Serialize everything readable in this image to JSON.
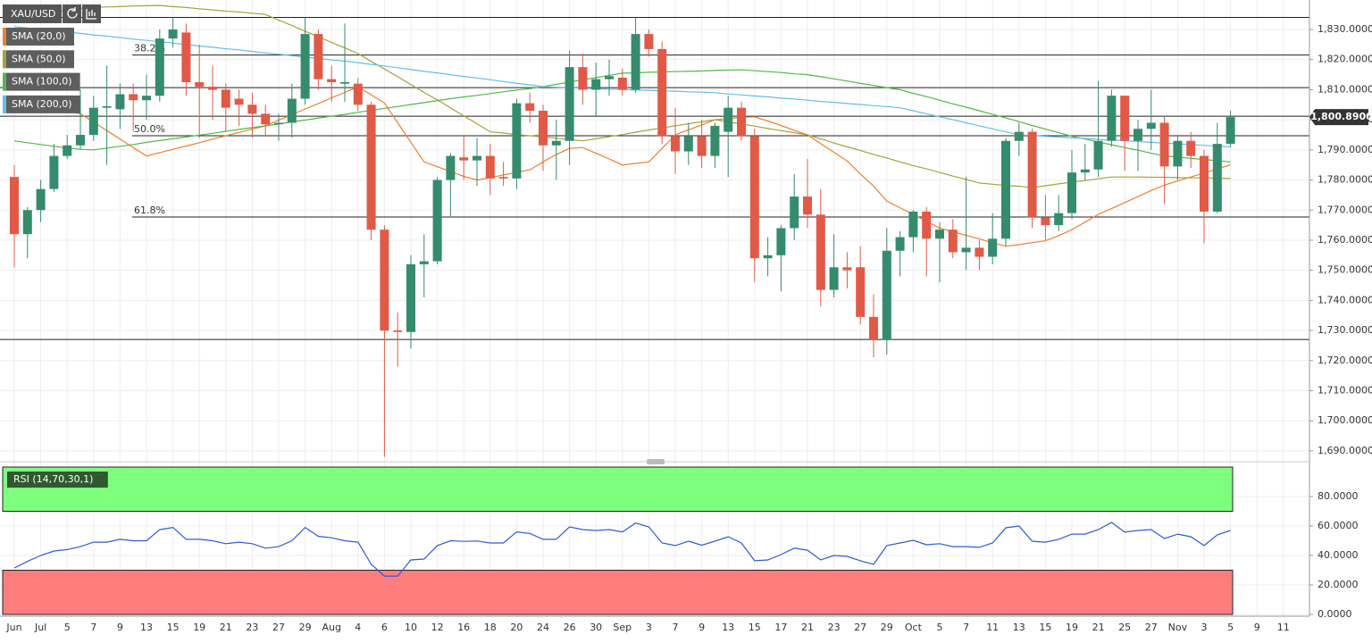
{
  "chart_data": [
    {
      "type": "candlestick",
      "symbol": "XAU/USD",
      "up_color": "#358c6c",
      "down_color": "#e05a47",
      "categories": [
        "Jun",
        null,
        "Jul",
        null,
        "5",
        null,
        "7",
        null,
        "9",
        null,
        "13",
        null,
        "15",
        null,
        "19",
        null,
        "21",
        null,
        "23",
        null,
        "27",
        null,
        "29",
        null,
        "Aug",
        null,
        "4",
        null,
        "6",
        null,
        "10",
        null,
        "12",
        null,
        "16",
        null,
        "18",
        null,
        "20",
        null,
        "24",
        null,
        "26",
        null,
        "30",
        null,
        "Sep",
        null,
        "3",
        null,
        "7",
        null,
        "9",
        null,
        "13",
        null,
        "15",
        null,
        "17",
        null,
        "21",
        null,
        "23",
        null,
        "27",
        null,
        "29",
        null,
        "Oct",
        null,
        "5",
        null,
        "7",
        null,
        "11",
        null,
        "13",
        null,
        "15",
        null,
        "19",
        null,
        "21",
        null,
        "25",
        null,
        "27",
        null,
        "Nov",
        null,
        "3",
        null,
        "5",
        null,
        "9",
        null,
        "11"
      ],
      "open": [
        1781,
        1762,
        1770,
        1777,
        1788,
        1791.5,
        1795,
        1804,
        1803.5,
        1808.5,
        1806.5,
        1808,
        1827,
        1829,
        1812.5,
        1811,
        1810,
        1807,
        1805,
        1802,
        1798.5,
        1799,
        1807,
        1828.5,
        1813.5,
        1812,
        1812,
        1805,
        1763.5,
        1730,
        1729.5,
        1752,
        1753,
        1780,
        1787.5,
        1786.5,
        1788,
        1781,
        1780.5,
        1805.5,
        1803,
        1791.5,
        1793,
        1817.5,
        1810,
        1813.5,
        1814,
        1810,
        1828.5,
        1823.5,
        1794.5,
        1789.5,
        1794.5,
        1788,
        1796,
        1804,
        1794.5,
        1754,
        1755,
        1764,
        1774.5,
        1768.5,
        1743.5,
        1751,
        1751,
        1734.5,
        1727,
        1756.5,
        1761,
        1769.5,
        1760.5,
        1763.5,
        1756,
        1757.5,
        1754.5,
        1760.5,
        1793,
        1796,
        1767.5,
        1765,
        1769,
        1782.5,
        1783.5,
        1793,
        1808,
        1793,
        1797,
        1799,
        1784.5,
        1793,
        1788,
        1769.5,
        1792,
        null,
        null,
        null,
        null
      ],
      "high": [
        1785,
        1771,
        1780,
        1792,
        1795,
        1810,
        1808,
        1818,
        1812,
        1812,
        1815,
        1830,
        1834,
        1832,
        1825,
        1818,
        1812,
        1810,
        1809,
        1805,
        1802,
        1812,
        1834,
        1830,
        1818,
        1832,
        1814,
        1806,
        1765,
        1736,
        1755,
        1762,
        1781,
        1789,
        1795,
        1794,
        1792,
        1786,
        1807,
        1809,
        1805,
        1800,
        1823,
        1822,
        1819,
        1820,
        1817,
        1834,
        1830,
        1826,
        1804,
        1799,
        1800,
        1799,
        1808,
        1806,
        1797,
        1761,
        1765,
        1782,
        1787,
        1777,
        1762,
        1756,
        1758,
        1742,
        1764,
        1763,
        1770,
        1771,
        1766,
        1767,
        1781,
        1760,
        1769,
        1794,
        1799,
        1797,
        1775,
        1775,
        1790,
        1792,
        1813,
        1810,
        1808,
        1800,
        1810,
        1801,
        1795,
        1796,
        1790,
        1799,
        1803,
        null,
        null,
        null,
        null
      ],
      "low": [
        1751,
        1754,
        1766,
        1776,
        1787,
        1790,
        1793,
        1785,
        1797,
        1796,
        1800,
        1806,
        1824,
        1808,
        1794,
        1800,
        1796,
        1798,
        1794,
        1795,
        1793,
        1794,
        1805,
        1810,
        1806,
        1806,
        1803,
        1760,
        1688,
        1718,
        1724,
        1741,
        1752,
        1768,
        1780,
        1778,
        1775,
        1778,
        1777,
        1799,
        1783,
        1780,
        1785,
        1805,
        1801,
        1808,
        1808,
        1809,
        1821,
        1792,
        1782,
        1785,
        1784,
        1784,
        1781,
        1793,
        1746,
        1748,
        1743,
        1760,
        1764,
        1738,
        1741,
        1744,
        1732,
        1721,
        1722,
        1748,
        1756,
        1748,
        1746,
        1754,
        1750,
        1750,
        1752,
        1758,
        1788,
        1764,
        1760,
        1763,
        1767,
        1780,
        1781,
        1791,
        1783,
        1783,
        1790,
        1772,
        1780,
        1784,
        1759,
        1769,
        1791,
        null,
        null,
        null,
        null
      ],
      "close": [
        1762,
        1770,
        1777,
        1788,
        1791.5,
        1795,
        1804,
        1804.5,
        1808.5,
        1806.5,
        1808,
        1827,
        1830,
        1812.5,
        1811,
        1810,
        1804,
        1805,
        1802,
        1798.5,
        1799,
        1807,
        1828.5,
        1813.5,
        1812.5,
        1812.5,
        1805,
        1763.5,
        1730,
        1729.5,
        1752,
        1753,
        1780,
        1788,
        1786.5,
        1788,
        1780.5,
        1780.5,
        1805.5,
        1803,
        1791.5,
        1793,
        1817.5,
        1810,
        1813.5,
        1814.5,
        1810,
        1828.5,
        1823.5,
        1794.5,
        1789.5,
        1794.5,
        1788,
        1798,
        1804,
        1794.5,
        1754,
        1755,
        1764,
        1774.5,
        1768.5,
        1743.5,
        1751,
        1750,
        1734.5,
        1727,
        1756.5,
        1761,
        1769.5,
        1760.5,
        1763.5,
        1756,
        1757.5,
        1754.5,
        1760.5,
        1793,
        1796,
        1767.5,
        1765,
        1769,
        1782.5,
        1783.5,
        1793,
        1808,
        1793,
        1797,
        1799,
        1784.5,
        1793,
        1788,
        1769.5,
        1792,
        1800.89,
        null,
        null,
        null,
        null
      ],
      "last_price_label": "1,800.8900",
      "lines": [
        {
          "name": "SMA (20,0)",
          "color": "#f07f2f",
          "values": [
            1806,
            1805.2,
            1804.5,
            1803.7,
            1802.9,
            1802,
            1799.2,
            1796.4,
            1793.6,
            1790.8,
            1788,
            1789.1,
            1790.2,
            1791.3,
            1792.4,
            1793.6,
            1794.7,
            1795.8,
            1796.9,
            1798,
            1799.9,
            1801.7,
            1803.6,
            1805.4,
            1807.3,
            1809.1,
            1811,
            1808.3,
            1805.6,
            1799,
            1792.5,
            1786,
            1784.4,
            1782.8,
            1781.2,
            1780,
            1780.8,
            1781.7,
            1782.5,
            1783.4,
            1786,
            1788.5,
            1790.5,
            1790.8,
            1788.9,
            1787,
            1785,
            1785.5,
            1786,
            1790.5,
            1795,
            1796.7,
            1798.3,
            1800,
            1800.4,
            1800.8,
            1801,
            1799.6,
            1798.1,
            1796.5,
            1795,
            1792.1,
            1789.2,
            1786.3,
            1782,
            1778,
            1773,
            1770.8,
            1768.5,
            1766.3,
            1764,
            1762.8,
            1761.6,
            1760.4,
            1759.2,
            1758,
            1758.5,
            1759.2,
            1759.8,
            1761.5,
            1763.5,
            1766,
            1768.6,
            1770.5,
            1772.5,
            1774.5,
            1776.5,
            1778.3,
            1779.7,
            1781,
            1782.3,
            1783.7,
            1785,
            null,
            null,
            null,
            null
          ]
        },
        {
          "name": "SMA (50,0)",
          "color": "#a6a33a",
          "values": [
            1834,
            1834.6,
            1835.2,
            1835.8,
            1836.4,
            1837,
            1837.4,
            1837.5,
            1837.6,
            1837.8,
            1837.9,
            1838,
            1837.6,
            1837.3,
            1836.9,
            1836.5,
            1836.1,
            1835.8,
            1835.4,
            1835,
            1833.1,
            1831.3,
            1829.4,
            1827.6,
            1825.7,
            1823.9,
            1822,
            1819.4,
            1816.9,
            1814.3,
            1811.7,
            1809.1,
            1806.6,
            1804,
            1801.3,
            1798.7,
            1796,
            1795.6,
            1795.1,
            1794.7,
            1794.3,
            1793.9,
            1793.4,
            1793,
            1793.7,
            1794.4,
            1795.1,
            1795.9,
            1796.6,
            1797.3,
            1798,
            1798.7,
            1799.3,
            1800,
            1799.3,
            1798.6,
            1797.9,
            1797.1,
            1796.4,
            1795.7,
            1795,
            1793.7,
            1792.3,
            1791,
            1789.8,
            1788.5,
            1787.3,
            1786,
            1784.8,
            1783.7,
            1782.5,
            1781.3,
            1780.2,
            1779,
            1778.6,
            1778.2,
            1777.9,
            1777.5,
            1778.1,
            1778.7,
            1779.3,
            1779.8,
            1780.4,
            1781,
            1781,
            1781,
            1780.9,
            1780.9,
            1780.8,
            1780.7,
            1780.7,
            1780.6,
            1780.5,
            null,
            null,
            null,
            null
          ]
        },
        {
          "name": "SMA (100,0)",
          "color": "#52b948",
          "values": [
            1793,
            1792.4,
            1791.8,
            1791.2,
            1790.6,
            1790.2,
            1790,
            1790.6,
            1791.2,
            1791.8,
            1792.5,
            1793.1,
            1793.7,
            1794.3,
            1794.9,
            1795.5,
            1796.2,
            1796.8,
            1797.4,
            1798,
            1798.6,
            1799.3,
            1799.9,
            1800.6,
            1801.2,
            1801.8,
            1802.5,
            1803.1,
            1803.8,
            1804.4,
            1805.1,
            1805.7,
            1806.4,
            1807,
            1807.6,
            1808.1,
            1808.7,
            1809.3,
            1809.9,
            1810.4,
            1811,
            1811.8,
            1812.5,
            1813.3,
            1814,
            1814.8,
            1815.5,
            1815.6,
            1815.8,
            1815.9,
            1816,
            1816.1,
            1816.2,
            1816.4,
            1816.5,
            1816.6,
            1816.3,
            1816,
            1815.7,
            1815.3,
            1815,
            1814.3,
            1813.6,
            1812.9,
            1812.1,
            1811.4,
            1810.7,
            1810,
            1808.8,
            1807.7,
            1806.5,
            1805.3,
            1804.2,
            1803,
            1801.8,
            1800.6,
            1799.4,
            1798.1,
            1796.9,
            1795.7,
            1794.5,
            1793.6,
            1792.6,
            1791.7,
            1790.8,
            1789.9,
            1788.9,
            1788,
            1787.6,
            1787.2,
            1786.8,
            1786.4,
            1786,
            null,
            null,
            null,
            null
          ]
        },
        {
          "name": "SMA (200,0)",
          "color": "#62bfea",
          "values": [
            1831,
            1830.5,
            1830.1,
            1829.6,
            1829.2,
            1828.7,
            1828.2,
            1827.8,
            1827.3,
            1826.8,
            1826.4,
            1825.9,
            1825.5,
            1825,
            1824.5,
            1824.1,
            1823.6,
            1823.2,
            1822.7,
            1822.2,
            1821.8,
            1821.3,
            1820.8,
            1820.4,
            1819.9,
            1819.5,
            1819,
            1818.4,
            1817.9,
            1817.3,
            1816.7,
            1816.1,
            1815.6,
            1815,
            1814.4,
            1813.9,
            1813.3,
            1812.7,
            1812.1,
            1811.6,
            1811,
            1810.8,
            1810.7,
            1810.5,
            1810.4,
            1810.2,
            1810.1,
            1809.9,
            1809.8,
            1809.6,
            1809.5,
            1809.3,
            1809.2,
            1809,
            1808.6,
            1808.3,
            1807.9,
            1807.6,
            1807.2,
            1806.9,
            1806.5,
            1806.1,
            1805.8,
            1805.4,
            1805.1,
            1804.7,
            1804.4,
            1804,
            1803,
            1802,
            1801,
            1800,
            1799,
            1798,
            1797,
            1796,
            1795,
            1794.8,
            1794.5,
            1794.3,
            1794,
            1793.8,
            1793.5,
            1793.3,
            1793,
            1792.8,
            1792.5,
            1792.3,
            1792,
            1791.8,
            1791.5,
            1791.3,
            1791,
            null,
            null,
            null,
            null
          ]
        }
      ],
      "levels": [
        1834,
        {
          "value": 1821.5,
          "label": "38.2%"
        },
        1810.7,
        1801.2,
        {
          "value": 1794.7,
          "label": "50.0%"
        },
        {
          "value": 1767.7,
          "label": "61.8%"
        },
        1727
      ],
      "ylim": [
        1687,
        1839.8
      ],
      "yticks": [
        {
          "value": 1690,
          "label": "1,690.0000"
        },
        {
          "value": 1700,
          "label": "1,700.0000"
        },
        {
          "value": 1710,
          "label": "1,710.0000"
        },
        {
          "value": 1720,
          "label": "1,720.0000"
        },
        {
          "value": 1730,
          "label": "1,730.0000"
        },
        {
          "value": 1740,
          "label": "1,740.0000"
        },
        {
          "value": 1750,
          "label": "1,750.0000"
        },
        {
          "value": 1760,
          "label": "1,760.0000"
        },
        {
          "value": 1770,
          "label": "1,770.0000"
        },
        {
          "value": 1780,
          "label": "1,780.0000"
        },
        {
          "value": 1790,
          "label": "1,790.0000"
        },
        {
          "value": 1800,
          "label": "1,800.0000"
        },
        {
          "value": 1810,
          "label": "1,810.0000"
        },
        {
          "value": 1820,
          "label": "1,820.0000"
        },
        {
          "value": 1830,
          "label": "1,830.0000"
        }
      ],
      "grid": true
    },
    {
      "type": "line",
      "series": [
        {
          "name": "RSI (14,70,30,1)",
          "color": "#2f5bd6",
          "values": [
            31.5,
            36,
            40,
            43,
            44,
            46,
            49,
            49,
            51,
            50,
            50,
            57.5,
            59,
            51,
            51,
            50,
            48,
            49,
            48,
            45,
            46,
            50,
            59,
            53,
            52,
            50,
            49,
            34,
            26,
            26,
            37,
            37.6,
            46.7,
            50,
            49.6,
            49.8,
            48.5,
            48.5,
            56,
            55,
            51,
            51,
            59.4,
            57.6,
            57,
            57.6,
            56,
            62,
            59.4,
            48.5,
            46.7,
            49.7,
            47,
            49.7,
            52.7,
            48.5,
            36.4,
            37,
            40.6,
            45,
            43.6,
            37,
            40,
            39.4,
            36.4,
            34,
            46.7,
            48.5,
            50.3,
            47.3,
            48,
            46,
            46,
            45.5,
            48.5,
            58.8,
            60,
            49.7,
            49,
            51,
            54.5,
            54.5,
            57.6,
            62.4,
            55.8,
            57,
            57.6,
            51.5,
            54.5,
            52.7,
            46.7,
            54,
            57,
            null,
            null,
            null,
            null
          ]
        }
      ],
      "bands": [
        {
          "from": 70,
          "to": 100,
          "color": "#7dff7d"
        },
        {
          "from": 0,
          "to": 30,
          "color": "#ff7d7d"
        }
      ],
      "ylim": [
        0,
        100
      ],
      "yticks": [
        {
          "value": 0,
          "label": "0.0000"
        },
        {
          "value": 20,
          "label": "20.0000"
        },
        {
          "value": 40,
          "label": "40.0000"
        },
        {
          "value": 60,
          "label": "60.0000"
        },
        {
          "value": 80,
          "label": "80.0000"
        }
      ],
      "grid": true
    }
  ]
}
